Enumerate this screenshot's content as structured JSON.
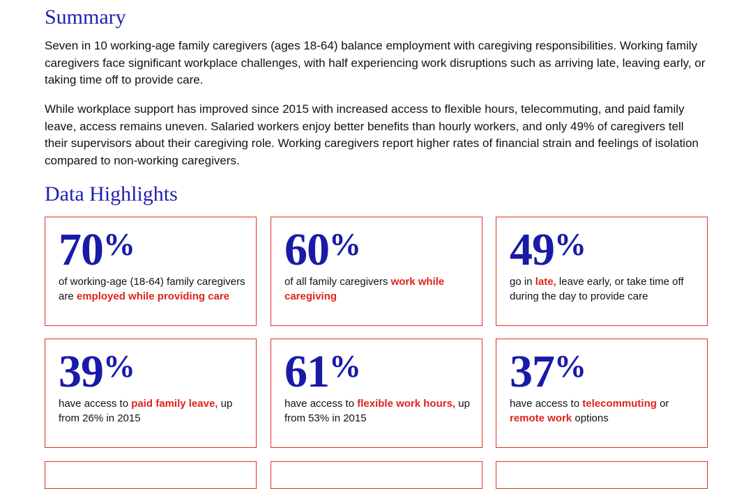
{
  "summary": {
    "heading": "Summary",
    "paragraph1": "Seven in 10 working-age family caregivers (ages 18-64) balance employment with caregiving responsibilities. Working family caregivers face significant workplace challenges, with half experiencing work disruptions such as arriving late, leaving early, or taking time off to provide care.",
    "paragraph2": "While workplace support has improved since 2015 with increased access to flexible hours, telecommuting, and paid family leave, access remains uneven. Salaried workers enjoy better benefits than hourly workers, and only 49% of caregivers tell their supervisors about their caregiving role. Working caregivers report higher rates of financial strain and feelings of isolation compared to non-working caregivers."
  },
  "highlights": {
    "heading": "Data Highlights",
    "cards": [
      {
        "value": "70",
        "unit": "%",
        "text_parts": [
          {
            "text": "of working-age (18-64) family caregivers are ",
            "highlight": false
          },
          {
            "text": "employed while providing care",
            "highlight": true
          }
        ]
      },
      {
        "value": "60",
        "unit": "%",
        "text_parts": [
          {
            "text": "of all family caregivers ",
            "highlight": false
          },
          {
            "text": "work while caregiving",
            "highlight": true
          }
        ]
      },
      {
        "value": "49",
        "unit": "%",
        "text_parts": [
          {
            "text": "go in ",
            "highlight": false
          },
          {
            "text": "late,",
            "highlight": true
          },
          {
            "text": " leave early, or take time off during the day to provide care",
            "highlight": false
          }
        ]
      },
      {
        "value": "39",
        "unit": "%",
        "text_parts": [
          {
            "text": "have access to ",
            "highlight": false
          },
          {
            "text": "paid family leave,",
            "highlight": true
          },
          {
            "text": " up from 26% in 2015",
            "highlight": false
          }
        ]
      },
      {
        "value": "61",
        "unit": "%",
        "text_parts": [
          {
            "text": "have access to ",
            "highlight": false
          },
          {
            "text": "flexible work hours,",
            "highlight": true
          },
          {
            "text": " up from 53% in 2015",
            "highlight": false
          }
        ]
      },
      {
        "value": "37",
        "unit": "%",
        "text_parts": [
          {
            "text": "have access to ",
            "highlight": false
          },
          {
            "text": "telecommuting",
            "highlight": true
          },
          {
            "text": " or ",
            "highlight": false
          },
          {
            "text": "remote work",
            "highlight": true
          },
          {
            "text": " options",
            "highlight": false
          }
        ]
      }
    ]
  },
  "colors": {
    "heading_blue": "#1f1fb0",
    "stat_blue": "#1a1aa8",
    "highlight_red": "#e0231c",
    "border_red": "#e0302a"
  }
}
